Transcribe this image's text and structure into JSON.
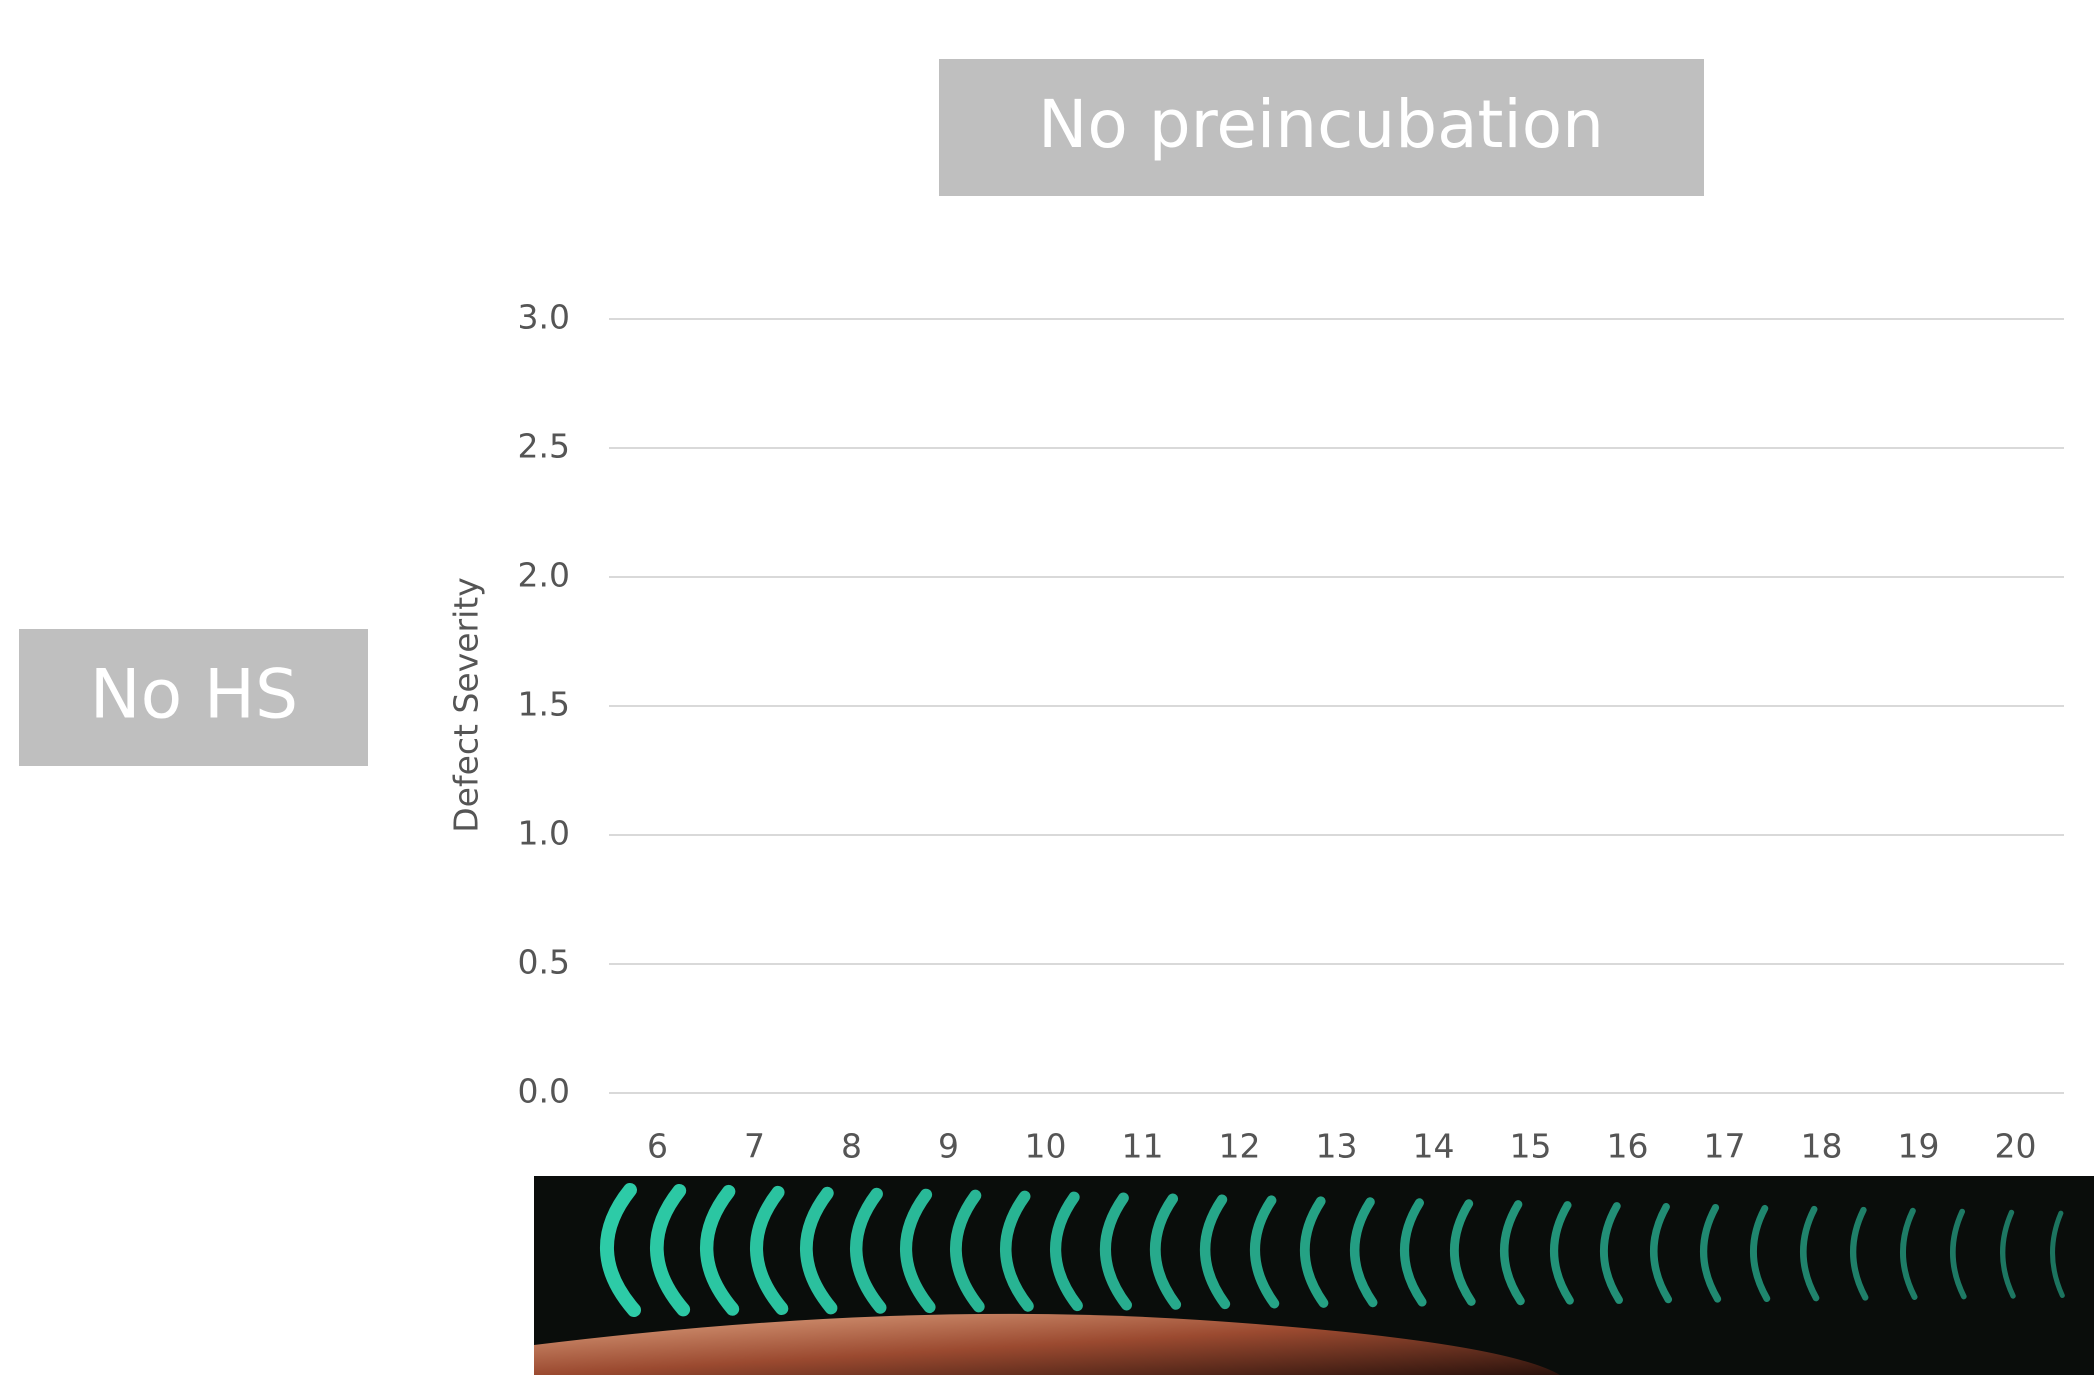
{
  "chart_data": {
    "type": "bar",
    "title": "No preincubation",
    "row_label": "No HS",
    "y_label": "Defect Severity",
    "categories": [
      "6",
      "7",
      "8",
      "9",
      "10",
      "11",
      "12",
      "13",
      "14",
      "15",
      "16",
      "17",
      "18",
      "19",
      "20"
    ],
    "ylim": [
      0,
      3
    ],
    "yticks": [
      {
        "value": 0,
        "label": "0.0"
      },
      {
        "value": 0.5,
        "label": "0.5"
      },
      {
        "value": 1,
        "label": "1.0"
      },
      {
        "value": 1.5,
        "label": "1.5"
      },
      {
        "value": 2,
        "label": "2.0"
      },
      {
        "value": 2.5,
        "label": "2.5"
      },
      {
        "value": 3,
        "label": "3.0"
      }
    ],
    "grid": true
  }
}
